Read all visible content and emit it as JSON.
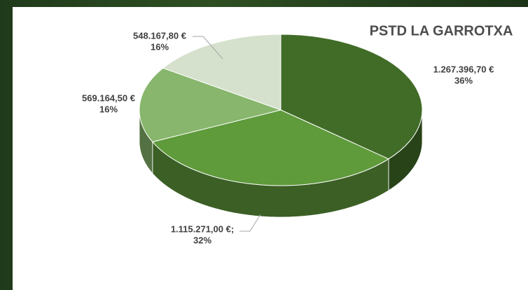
{
  "chart_data": {
    "type": "pie",
    "title": "PSTD LA GARROTXA",
    "values": [
      1267396.7,
      1115271.0,
      569164.5,
      548167.8
    ],
    "value_labels": [
      "1.267.396,70 €",
      "1.115.271,00 €;",
      "569.164,50 €",
      "548.167,80 €"
    ],
    "percentages": [
      36,
      32,
      16,
      16
    ],
    "percentage_labels": [
      "36%",
      "32%",
      "16%",
      "16%"
    ],
    "colors": [
      "#416c27",
      "#5f9a3b",
      "#87b66c",
      "#d6e1cd"
    ]
  }
}
